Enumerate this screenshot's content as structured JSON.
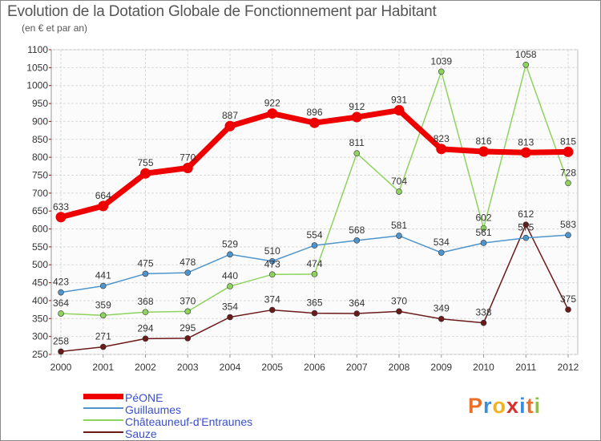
{
  "title": "Evolution de la Dotation Globale de Fonctionnement par Habitant",
  "subtitle": "(en € et par an)",
  "logo": {
    "text": "Proxiti",
    "letters": [
      "P",
      "r",
      "o",
      "x",
      "i",
      "t",
      "i"
    ],
    "colors": [
      "#e8702a",
      "#3b8fd8",
      "#f0b323",
      "#d8302f",
      "#3b8fd8",
      "#e8702a",
      "#8cc43c"
    ]
  },
  "chart_data": {
    "type": "line",
    "title": "Evolution de la Dotation Globale de Fonctionnement par Habitant",
    "subtitle": "(en € et par an)",
    "xlabel": "",
    "ylabel": "",
    "x": [
      2000,
      2001,
      2002,
      2003,
      2004,
      2005,
      2006,
      2007,
      2008,
      2009,
      2010,
      2011,
      2012
    ],
    "ylim": [
      250,
      1100
    ],
    "yticks": [
      250,
      300,
      350,
      400,
      450,
      500,
      550,
      600,
      650,
      700,
      750,
      800,
      850,
      900,
      950,
      1000,
      1050,
      1100
    ],
    "grid": true,
    "legend_position": "bottom-left",
    "series": [
      {
        "name": "PéONE",
        "color": "#ee0000",
        "values": [
          633,
          664,
          755,
          770,
          887,
          922,
          896,
          912,
          931,
          823,
          816,
          813,
          815
        ]
      },
      {
        "name": "Guillaumes",
        "color": "#4f95cc",
        "values": [
          423,
          441,
          475,
          478,
          529,
          510,
          554,
          568,
          581,
          534,
          561,
          575,
          583
        ]
      },
      {
        "name": "Châteauneuf-d'Entraunes",
        "color": "#8fd35f",
        "values": [
          364,
          359,
          368,
          370,
          440,
          473,
          474,
          811,
          704,
          1039,
          602,
          1058,
          728
        ]
      },
      {
        "name": "Sauze",
        "color": "#6b1a1a",
        "values": [
          258,
          271,
          294,
          295,
          354,
          374,
          365,
          364,
          370,
          349,
          338,
          612,
          375
        ]
      }
    ]
  }
}
